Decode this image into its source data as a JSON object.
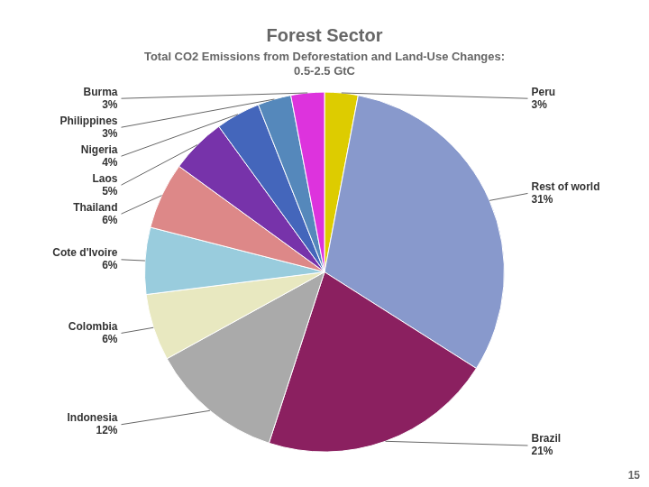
{
  "chart_data": {
    "type": "pie",
    "title": "Forest Sector",
    "subtitle": [
      "Total CO2 Emissions from Deforestation and Land-Use Changes:",
      "0.5-2.5 GtC"
    ],
    "categories": [
      "Peru",
      "Rest of world",
      "Brazil",
      "Indonesia",
      "Colombia",
      "Cote d'Ivoire",
      "Thailand",
      "Laos",
      "Nigeria",
      "Philippines",
      "Burma"
    ],
    "values": [
      3,
      31,
      21,
      12,
      6,
      6,
      6,
      5,
      4,
      3,
      3
    ],
    "value_labels": [
      "3%",
      "31%",
      "21%",
      "12%",
      "6%",
      "6%",
      "6%",
      "5%",
      "4%",
      "3%",
      "3%"
    ],
    "colors": [
      "#ddcc00",
      "#8899cc",
      "#8b2060",
      "#aaaaaa",
      "#e8e8c0",
      "#99ccdd",
      "#dd8888",
      "#7733aa",
      "#4466bb",
      "#5588bb",
      "#dd33dd"
    ],
    "data_labels": true,
    "annotations": [
      "15"
    ]
  }
}
